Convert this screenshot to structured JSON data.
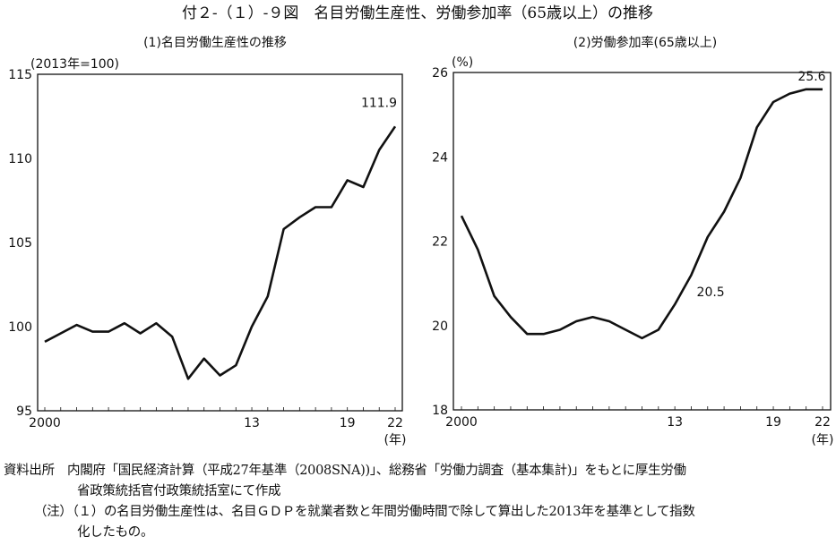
{
  "title": "付２-（１）-９図　名目労働生産性、労働参加率（65歳以上）の推移",
  "chart_data": [
    {
      "type": "line",
      "title": "(1)名目労働生産性の推移",
      "ylabel": "(2013年=100)",
      "xlabel": "(年)",
      "x": [
        2000,
        2001,
        2002,
        2003,
        2004,
        2005,
        2006,
        2007,
        2008,
        2009,
        2010,
        2011,
        2012,
        2013,
        2014,
        2015,
        2016,
        2017,
        2018,
        2019,
        2020,
        2021,
        2022
      ],
      "values": [
        99.1,
        99.6,
        100.1,
        99.7,
        99.7,
        100.2,
        99.6,
        100.2,
        99.4,
        96.9,
        98.1,
        97.1,
        97.7,
        100.0,
        101.8,
        105.8,
        106.5,
        107.1,
        107.1,
        108.7,
        108.3,
        110.5,
        111.9
      ],
      "ylim": [
        95,
        115
      ],
      "yticks": [
        "95",
        "100",
        "105",
        "110",
        "115"
      ],
      "xticks": [
        {
          "year": 2000,
          "label": "2000"
        },
        {
          "year": 2013,
          "label": "13"
        },
        {
          "year": 2019,
          "label": "19"
        },
        {
          "year": 2022,
          "label": "22"
        }
      ],
      "annotations": [
        {
          "year": 2022,
          "text": "111.9"
        }
      ],
      "grid": false
    },
    {
      "type": "line",
      "title": "(2)労働参加率(65歳以上)",
      "ylabel": "(%)",
      "xlabel": "(年)",
      "x": [
        2000,
        2001,
        2002,
        2003,
        2004,
        2005,
        2006,
        2007,
        2008,
        2009,
        2010,
        2011,
        2012,
        2013,
        2014,
        2015,
        2016,
        2017,
        2018,
        2019,
        2020,
        2021,
        2022
      ],
      "values": [
        22.6,
        21.8,
        20.7,
        20.2,
        19.8,
        19.8,
        19.9,
        20.1,
        20.2,
        20.1,
        19.9,
        19.7,
        19.9,
        20.5,
        21.2,
        22.1,
        22.7,
        23.5,
        24.7,
        25.3,
        25.5,
        25.6,
        25.6
      ],
      "ylim": [
        18,
        26
      ],
      "yticks": [
        "18",
        "20",
        "22",
        "24",
        "26"
      ],
      "xticks": [
        {
          "year": 2000,
          "label": "2000"
        },
        {
          "year": 2013,
          "label": "13"
        },
        {
          "year": 2019,
          "label": "19"
        },
        {
          "year": 2022,
          "label": "22"
        }
      ],
      "annotations": [
        {
          "year": 2013,
          "text": "20.5"
        },
        {
          "year": 2022,
          "text": "25.6"
        }
      ],
      "grid": false
    }
  ],
  "notes": {
    "source_line1": "資料出所　内閣府「国民経済計算（平成27年基準（2008SNA))」、総務省「労働力調査（基本集計)」をもとに厚生労働",
    "source_line2": "省政策統括官付政策統括室にて作成",
    "note_line1": "（注）（１）の名目労働生産性は、名目ＧＤＰを就業者数と年間労働時間で除して算出した2013年を基準として指数",
    "note_line2": "化したもの。"
  }
}
